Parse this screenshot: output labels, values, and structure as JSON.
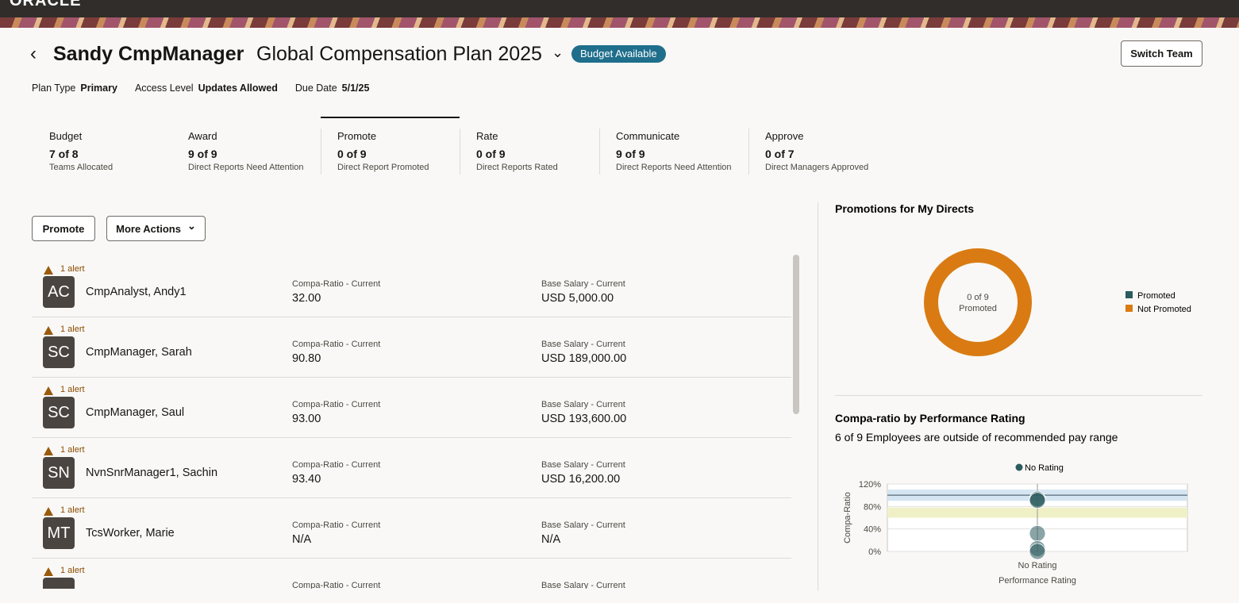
{
  "brand": "ORACLE",
  "header": {
    "title": "Sandy CmpManager",
    "plan": "Global Compensation Plan 2025",
    "badge": "Budget Available",
    "switch": "Switch Team"
  },
  "meta": [
    {
      "label": "Plan Type",
      "value": "Primary"
    },
    {
      "label": "Access Level",
      "value": "Updates Allowed"
    },
    {
      "label": "Due Date",
      "value": "5/1/25"
    }
  ],
  "tabs": [
    {
      "name": "Budget",
      "count": "7 of 8",
      "desc": "Teams Allocated"
    },
    {
      "name": "Award",
      "count": "9 of 9",
      "desc": "Direct Reports Need Attention"
    },
    {
      "name": "Promote",
      "count": "0 of 9",
      "desc": "Direct Report Promoted"
    },
    {
      "name": "Rate",
      "count": "0 of 9",
      "desc": "Direct Reports Rated"
    },
    {
      "name": "Communicate",
      "count": "9 of 9",
      "desc": "Direct Reports Need Attention"
    },
    {
      "name": "Approve",
      "count": "0 of 7",
      "desc": "Direct Managers Approved"
    }
  ],
  "actions": [
    "Promote",
    "More Actions"
  ],
  "employees": [
    {
      "alert": "1 alert",
      "initials": "AC",
      "name": "CmpAnalyst, Andy1",
      "ratio_label": "Compa-Ratio - Current",
      "ratio": "32.00",
      "salary_label": "Base Salary - Current",
      "salary": "USD 5,000.00"
    },
    {
      "alert": "1 alert",
      "initials": "SC",
      "name": "CmpManager, Sarah",
      "ratio_label": "Compa-Ratio - Current",
      "ratio": "90.80",
      "salary_label": "Base Salary - Current",
      "salary": "USD 189,000.00"
    },
    {
      "alert": "1 alert",
      "initials": "SC",
      "name": "CmpManager, Saul",
      "ratio_label": "Compa-Ratio - Current",
      "ratio": "93.00",
      "salary_label": "Base Salary - Current",
      "salary": "USD 193,600.00"
    },
    {
      "alert": "1 alert",
      "initials": "SN",
      "name": "NvnSnrManager1, Sachin",
      "ratio_label": "Compa-Ratio - Current",
      "ratio": "93.40",
      "salary_label": "Base Salary - Current",
      "salary": "USD 16,200.00"
    },
    {
      "alert": "1 alert",
      "initials": "MT",
      "name": "TcsWorker, Marie",
      "ratio_label": "Compa-Ratio - Current",
      "ratio": "N/A",
      "salary_label": "Base Salary - Current",
      "salary": "N/A"
    },
    {
      "alert": "1 alert",
      "ratio_label": "Compa-Ratio - Current",
      "salary_label": "Base Salary - Current"
    }
  ],
  "promotions": {
    "type": "pie",
    "title": "Promotions for My Directs",
    "center": [
      "0 of 9",
      "Promoted"
    ],
    "series": [
      {
        "name": "Promoted",
        "color": "#2b5b5f",
        "value": 0
      },
      {
        "name": "Not Promoted",
        "color": "#d97b12",
        "value": 9
      }
    ]
  },
  "compa": {
    "type": "scatter",
    "title": "Compa-ratio by Performance Rating",
    "subtitle": "6 of 9 Employees are outside of recommended pay range",
    "series": [
      {
        "name": "No Rating",
        "color": "#2b5b5f",
        "values": [
          93.4,
          93,
          90.8,
          32,
          5,
          0
        ]
      }
    ],
    "categories": [
      "No Rating"
    ],
    "ylabel": "Compa-Ratio",
    "xlabel": "Performance Rating",
    "ylim": [
      0,
      120
    ],
    "yticks": [
      {
        "value": 0,
        "label": "0%"
      },
      {
        "value": 40,
        "label": "40%"
      },
      {
        "value": 80,
        "label": "80%"
      },
      {
        "value": 120,
        "label": "120%"
      }
    ],
    "bands": [
      {
        "range": [
          90,
          110
        ],
        "color": "#d5e5f1"
      },
      {
        "range": [
          60,
          78
        ],
        "color": "#eff0c6"
      }
    ],
    "reference": 100
  }
}
